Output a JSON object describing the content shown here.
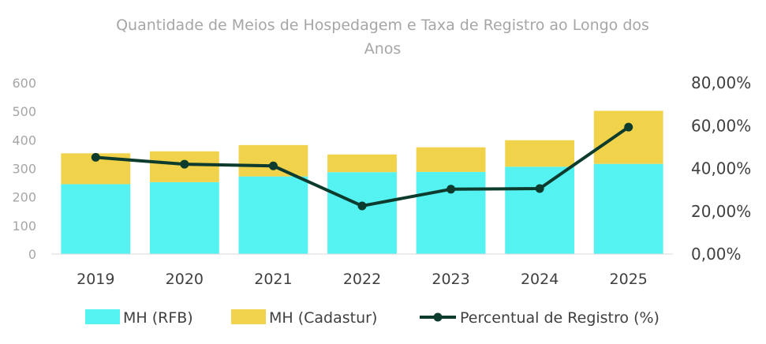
{
  "chart_data": {
    "type": "bar",
    "title_line1": "Quantidade de Meios de Hospedagem e Taxa de Registro ao Longo dos",
    "title_line2": "Anos",
    "categories": [
      "2019",
      "2020",
      "2021",
      "2022",
      "2023",
      "2024",
      "2025"
    ],
    "stacked": true,
    "series": [
      {
        "name": "MH (RFB)",
        "type": "bar",
        "axis": "left",
        "color": "#55f2f2",
        "values": [
          245,
          252,
          272,
          287,
          288,
          306,
          316
        ]
      },
      {
        "name": "MH (Cadastur)",
        "type": "bar",
        "axis": "left",
        "color": "#f0d24b",
        "values": [
          108,
          108,
          110,
          62,
          86,
          93,
          186
        ]
      },
      {
        "name": "Percentual de Registro (%)",
        "type": "line",
        "axis": "right",
        "color": "#0d3b2e",
        "values": [
          45.2,
          42.0,
          41.2,
          22.5,
          30.3,
          30.6,
          59.3
        ]
      }
    ],
    "y_left": {
      "min": 0,
      "max": 600,
      "ticks": [
        "0",
        "100",
        "200",
        "300",
        "400",
        "500",
        "600"
      ]
    },
    "y_right": {
      "min": 0,
      "max": 80,
      "ticks": [
        "0,00%",
        "20,00%",
        "40,00%",
        "60,00%",
        "80,00%"
      ]
    },
    "grid": false,
    "legend_position": "bottom"
  }
}
